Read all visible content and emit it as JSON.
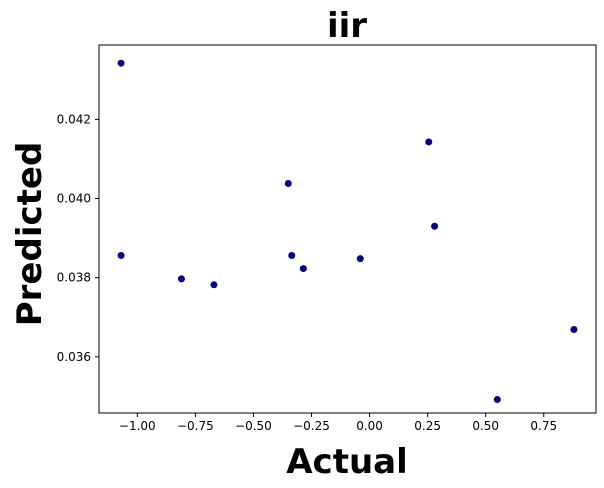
{
  "chart_data": {
    "type": "scatter",
    "title": "iir",
    "xlabel": "Actual",
    "ylabel": "Predicted",
    "xlim": [
      -1.165,
      0.975
    ],
    "ylim": [
      0.03458,
      0.04388
    ],
    "x_ticks": [
      -1.0,
      -0.75,
      -0.5,
      -0.25,
      0.0,
      0.25,
      0.5,
      0.75
    ],
    "x_tick_labels": [
      "−1.00",
      "−0.75",
      "−0.50",
      "−0.25",
      "0.00",
      "0.25",
      "0.50",
      "0.75"
    ],
    "y_ticks": [
      0.036,
      0.038,
      0.04,
      0.042
    ],
    "y_tick_labels": [
      "0.036",
      "0.038",
      "0.040",
      "0.042"
    ],
    "grid": false,
    "marker_color": "#000080",
    "points": [
      {
        "x": -1.07,
        "y": 0.04342
      },
      {
        "x": -1.07,
        "y": 0.03856
      },
      {
        "x": -0.81,
        "y": 0.03797
      },
      {
        "x": -0.67,
        "y": 0.03782
      },
      {
        "x": -0.35,
        "y": 0.04038
      },
      {
        "x": -0.335,
        "y": 0.03856
      },
      {
        "x": -0.285,
        "y": 0.03823
      },
      {
        "x": -0.04,
        "y": 0.03848
      },
      {
        "x": 0.255,
        "y": 0.04143
      },
      {
        "x": 0.28,
        "y": 0.0393
      },
      {
        "x": 0.55,
        "y": 0.03492
      },
      {
        "x": 0.88,
        "y": 0.03669
      }
    ]
  }
}
